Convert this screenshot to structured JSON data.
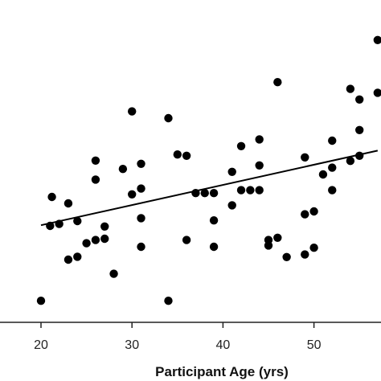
{
  "chart_data": {
    "type": "scatter",
    "title": "",
    "xlabel": "Participant Age (yrs)",
    "ylabel": "",
    "xlim": [
      14.8,
      57
    ],
    "ylim": [
      0,
      1
    ],
    "x_ticks": [
      20,
      30,
      40,
      50
    ],
    "x_tick_labels": [
      "20",
      "30",
      "40",
      "50"
    ],
    "grid": false,
    "legend": "none",
    "points": [
      {
        "x": 20,
        "y": 0.057
      },
      {
        "x": 21,
        "y": 0.29
      },
      {
        "x": 21.2,
        "y": 0.38
      },
      {
        "x": 22,
        "y": 0.296
      },
      {
        "x": 23,
        "y": 0.36
      },
      {
        "x": 23,
        "y": 0.185
      },
      {
        "x": 24,
        "y": 0.305
      },
      {
        "x": 24,
        "y": 0.194
      },
      {
        "x": 25,
        "y": 0.236
      },
      {
        "x": 26,
        "y": 0.493
      },
      {
        "x": 26,
        "y": 0.434
      },
      {
        "x": 26,
        "y": 0.246
      },
      {
        "x": 27,
        "y": 0.25
      },
      {
        "x": 27,
        "y": 0.288
      },
      {
        "x": 28,
        "y": 0.141
      },
      {
        "x": 29,
        "y": 0.467
      },
      {
        "x": 30,
        "y": 0.646
      },
      {
        "x": 30,
        "y": 0.388
      },
      {
        "x": 31,
        "y": 0.483
      },
      {
        "x": 31,
        "y": 0.406
      },
      {
        "x": 31,
        "y": 0.314
      },
      {
        "x": 31,
        "y": 0.225
      },
      {
        "x": 34,
        "y": 0.625
      },
      {
        "x": 34,
        "y": 0.057
      },
      {
        "x": 35,
        "y": 0.512
      },
      {
        "x": 36,
        "y": 0.508
      },
      {
        "x": 36,
        "y": 0.246
      },
      {
        "x": 37,
        "y": 0.392
      },
      {
        "x": 38,
        "y": 0.392
      },
      {
        "x": 39,
        "y": 0.392
      },
      {
        "x": 39,
        "y": 0.307
      },
      {
        "x": 39,
        "y": 0.225
      },
      {
        "x": 41,
        "y": 0.458
      },
      {
        "x": 41,
        "y": 0.354
      },
      {
        "x": 42,
        "y": 0.401
      },
      {
        "x": 42,
        "y": 0.538
      },
      {
        "x": 43,
        "y": 0.401
      },
      {
        "x": 44,
        "y": 0.401
      },
      {
        "x": 44,
        "y": 0.559
      },
      {
        "x": 44,
        "y": 0.478
      },
      {
        "x": 45,
        "y": 0.246
      },
      {
        "x": 45,
        "y": 0.229
      },
      {
        "x": 46,
        "y": 0.253
      },
      {
        "x": 46,
        "y": 0.737
      },
      {
        "x": 47,
        "y": 0.193
      },
      {
        "x": 49,
        "y": 0.503
      },
      {
        "x": 49,
        "y": 0.326
      },
      {
        "x": 49,
        "y": 0.201
      },
      {
        "x": 50,
        "y": 0.335
      },
      {
        "x": 50,
        "y": 0.222
      },
      {
        "x": 51,
        "y": 0.45
      },
      {
        "x": 52,
        "y": 0.555
      },
      {
        "x": 52,
        "y": 0.471
      },
      {
        "x": 52,
        "y": 0.401
      },
      {
        "x": 54,
        "y": 0.716
      },
      {
        "x": 54,
        "y": 0.492
      },
      {
        "x": 55,
        "y": 0.683
      },
      {
        "x": 55,
        "y": 0.588
      },
      {
        "x": 55,
        "y": 0.508
      },
      {
        "x": 57,
        "y": 0.868
      },
      {
        "x": 57,
        "y": 0.704
      }
    ],
    "trendline": {
      "x": [
        20,
        57
      ],
      "y": [
        0.292,
        0.524
      ]
    },
    "colors": {
      "marker": "#000000",
      "line": "#000000",
      "axis": "#222222"
    }
  }
}
